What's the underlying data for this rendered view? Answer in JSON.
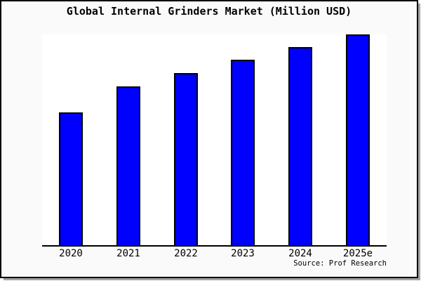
{
  "title": "Global Internal Grinders Market (Million USD)",
  "source_credit": "Source: Prof Research",
  "colors": {
    "bar_fill": "#0000ff",
    "bar_border": "#000000",
    "canvas_background": "#fafafa",
    "plot_background": "#ffffff",
    "axis_line": "#000000",
    "frame_border": "#000000",
    "frame_shadow": "#a3a3a3",
    "text": "#000000"
  },
  "chart_data": {
    "type": "bar",
    "title": "Global Internal Grinders Market (Million USD)",
    "categories": [
      "2020",
      "2021",
      "2022",
      "2023",
      "2024",
      "2025e"
    ],
    "values": [
      63,
      75.3,
      81.7,
      88,
      94,
      100
    ],
    "values_note": "no y-axis scale shown in image; values are relative, normalized to 2025e = 100",
    "xlabel": "",
    "ylabel": "",
    "ylim": [
      0,
      100.7
    ],
    "grid": false,
    "legend": false,
    "source": "Source: Prof Research"
  }
}
